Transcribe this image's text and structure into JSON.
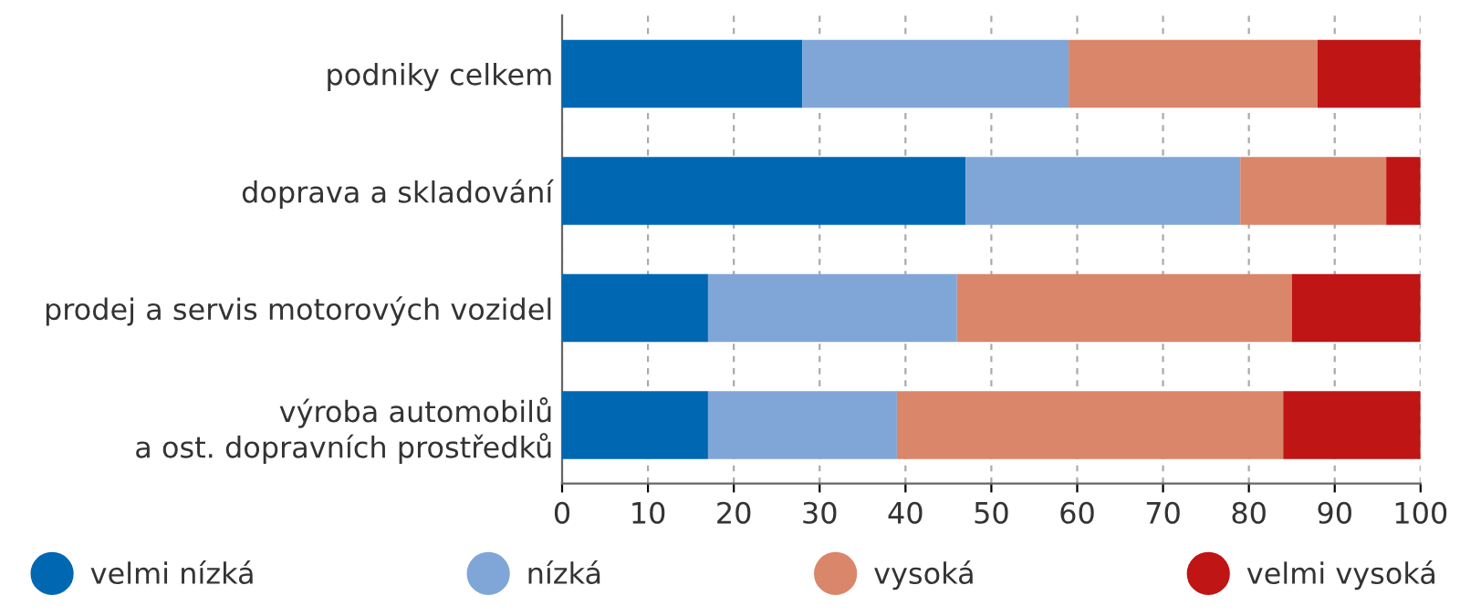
{
  "chart_data": {
    "type": "bar",
    "orientation": "horizontal",
    "stacked": true,
    "categories": [
      "podniky celkem",
      "doprava a skladování",
      "prodej a servis motorových vozidel",
      "výroba automobilů\na ost. dopravních prostředků"
    ],
    "series": [
      {
        "name": "velmi nízká",
        "color": "#0068b3",
        "values": [
          28,
          47,
          17,
          17
        ]
      },
      {
        "name": "nízká",
        "color": "#80a6d8",
        "values": [
          31,
          32,
          29,
          22
        ]
      },
      {
        "name": "vysoká",
        "color": "#da866a",
        "values": [
          29,
          17,
          39,
          45
        ]
      },
      {
        "name": "velmi vysoká",
        "color": "#bf1515",
        "values": [
          12,
          4,
          15,
          16
        ]
      }
    ],
    "xlim": [
      0,
      100
    ],
    "xticks": [
      0,
      10,
      20,
      30,
      40,
      50,
      60,
      70,
      80,
      90,
      100
    ],
    "grid": "x",
    "legend": "bottom"
  }
}
